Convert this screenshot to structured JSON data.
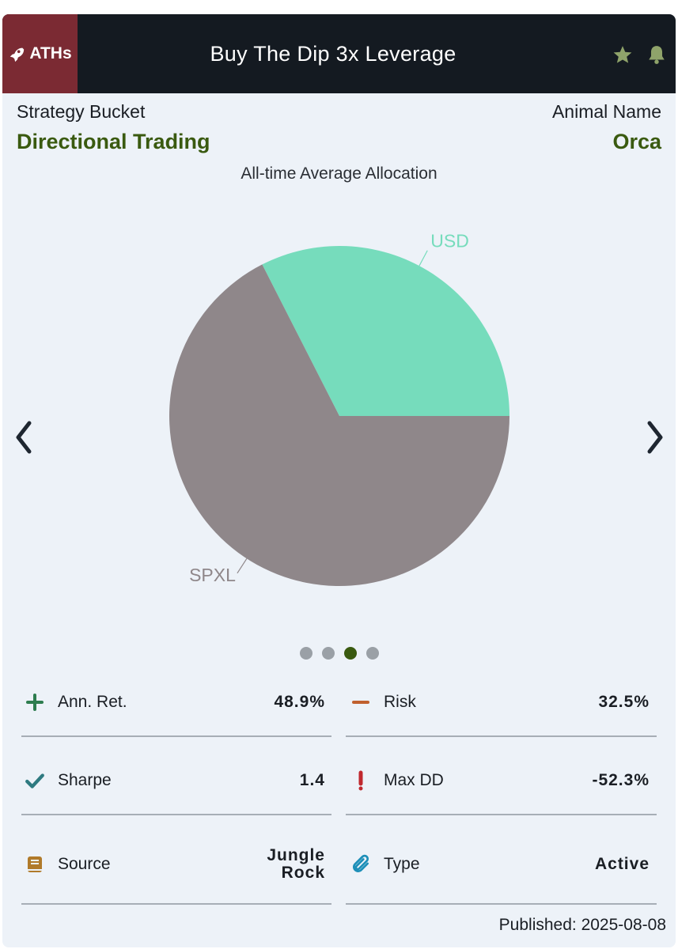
{
  "header": {
    "badge_label": "ATHs",
    "badge_icon": "rocket-icon",
    "title": "Buy The Dip 3x Leverage",
    "icons": [
      "star-icon",
      "bell-icon"
    ],
    "icon_color": "#8fa36a",
    "badge_color": "#7b2a33"
  },
  "info": {
    "strategy_bucket_label": "Strategy Bucket",
    "strategy_bucket_value": "Directional Trading",
    "animal_name_label": "Animal Name",
    "animal_name_value": "Orca",
    "accent_color": "#3a5a10"
  },
  "allocation": {
    "title": "All-time Average Allocation"
  },
  "chart_data": {
    "type": "pie",
    "title": "All-time Average Allocation",
    "slices": [
      {
        "label": "USD",
        "value": 32.5,
        "color": "#76dcbc"
      },
      {
        "label": "SPXL",
        "value": 67.5,
        "color": "#8f878a"
      }
    ]
  },
  "carousel": {
    "page_count": 4,
    "active_index": 2
  },
  "stats": [
    {
      "icon": "plus-icon",
      "label": "Ann. Ret.",
      "value": "48.9%",
      "color": "#2e7d4f"
    },
    {
      "icon": "minus-icon",
      "label": "Risk",
      "value": "32.5%",
      "color": "#c0602e"
    },
    {
      "icon": "check-icon",
      "label": "Sharpe",
      "value": "1.4",
      "color": "#2e7a80"
    },
    {
      "icon": "exclamation-icon",
      "label": "Max DD",
      "value": "-52.3%",
      "color": "#c0282e"
    },
    {
      "icon": "book-icon",
      "label": "Source",
      "value": "Jungle Rock",
      "color": "#b07a2a"
    },
    {
      "icon": "paperclip-icon",
      "label": "Type",
      "value": "Active",
      "color": "#1d8fb8"
    }
  ],
  "footer": {
    "published": "Published: 2025-08-08"
  }
}
